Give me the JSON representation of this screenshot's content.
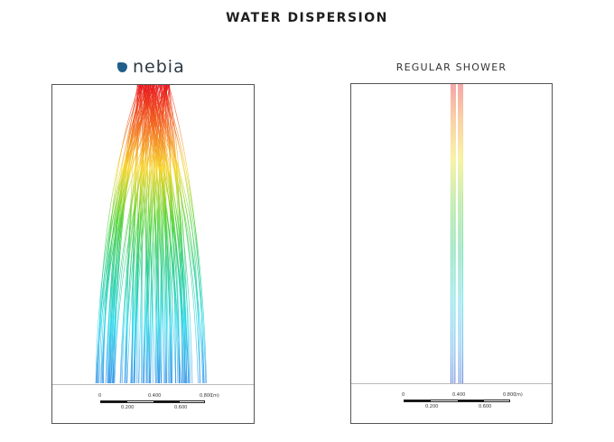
{
  "title": "WATER DISPERSION",
  "left_panel": {
    "brand": "nebia",
    "brand_color": "#1f5f8a",
    "scale": {
      "top_ticks": [
        "0",
        "0.400",
        "0.800"
      ],
      "bottom_ticks": [
        "0.200",
        "0.600"
      ],
      "unit": "(m)"
    }
  },
  "right_panel": {
    "label": "REGULAR SHOWER",
    "scale": {
      "top_ticks": [
        "0",
        "0.400",
        "0.800"
      ],
      "bottom_ticks": [
        "0.200",
        "0.600"
      ],
      "unit": "(m)"
    }
  },
  "color_scale": [
    "#e8141b",
    "#f7901e",
    "#f5e21b",
    "#4fd12c",
    "#17c98a",
    "#1fd3e8",
    "#2a6fd9"
  ]
}
